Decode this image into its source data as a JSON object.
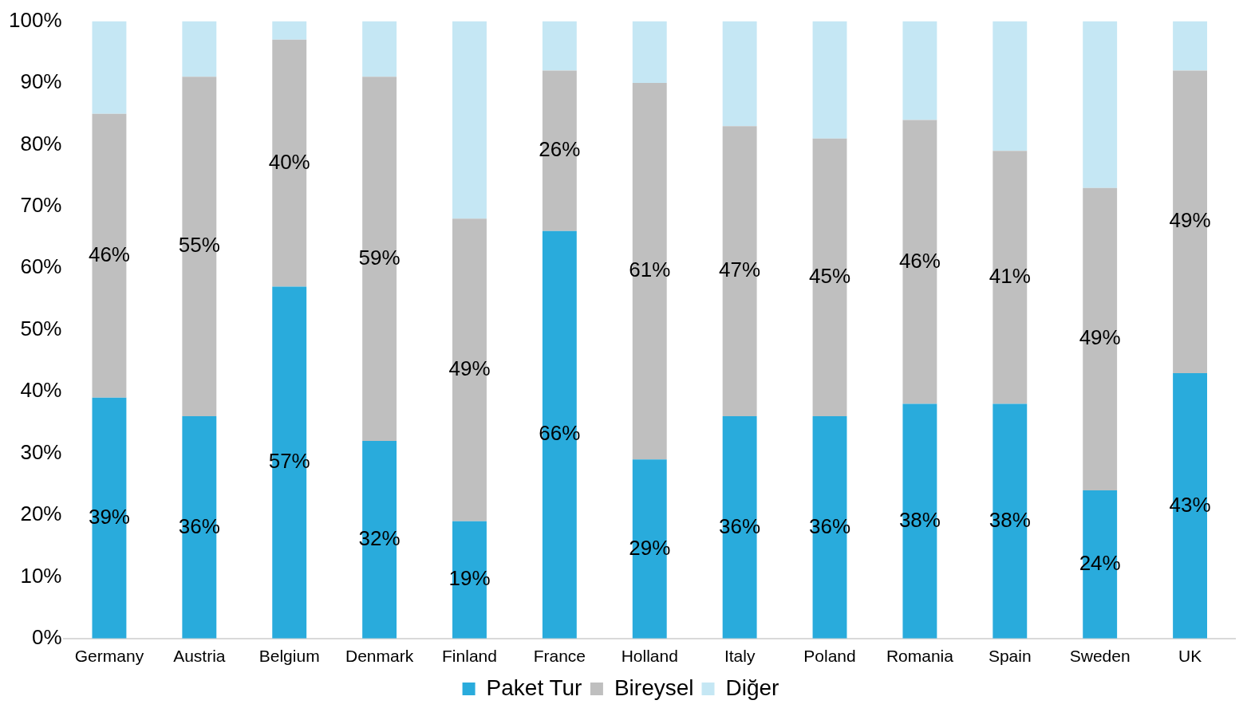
{
  "chart_data": {
    "type": "bar",
    "stacked": true,
    "categories": [
      "Germany",
      "Austria",
      "Belgium",
      "Denmark",
      "Finland",
      "France",
      "Holland",
      "Italy",
      "Poland",
      "Romania",
      "Spain",
      "Sweden",
      "UK"
    ],
    "series": [
      {
        "name": "Paket Tur",
        "color": "#29abdc",
        "values": [
          39,
          36,
          57,
          32,
          19,
          66,
          29,
          36,
          36,
          38,
          38,
          24,
          43
        ],
        "value_labels": [
          "39%",
          "36%",
          "57%",
          "32%",
          "19%",
          "66%",
          "29%",
          "36%",
          "36%",
          "38%",
          "38%",
          "24%",
          "43%"
        ]
      },
      {
        "name": "Bireysel",
        "color": "#bfbfbf",
        "values": [
          46,
          55,
          40,
          59,
          49,
          26,
          61,
          47,
          45,
          46,
          41,
          49,
          49
        ],
        "value_labels": [
          "46%",
          "55%",
          "40%",
          "59%",
          "49%",
          "26%",
          "61%",
          "47%",
          "45%",
          "46%",
          "41%",
          "49%",
          "49%"
        ]
      },
      {
        "name": "Diğer",
        "color": "#c5e7f4",
        "values": [
          15,
          9,
          3,
          9,
          32,
          8,
          10,
          17,
          19,
          16,
          21,
          27,
          8
        ]
      }
    ],
    "ylim": [
      0,
      100
    ],
    "yticks": [
      {
        "value": 0,
        "label": "0%"
      },
      {
        "value": 10,
        "label": "10%"
      },
      {
        "value": 20,
        "label": "20%"
      },
      {
        "value": 30,
        "label": "30%"
      },
      {
        "value": 40,
        "label": "40%"
      },
      {
        "value": 50,
        "label": "50%"
      },
      {
        "value": 60,
        "label": "60%"
      },
      {
        "value": 70,
        "label": "70%"
      },
      {
        "value": 80,
        "label": "80%"
      },
      {
        "value": 90,
        "label": "90%"
      },
      {
        "value": 100,
        "label": "100%"
      }
    ],
    "grid": false,
    "legend": "bottom"
  }
}
